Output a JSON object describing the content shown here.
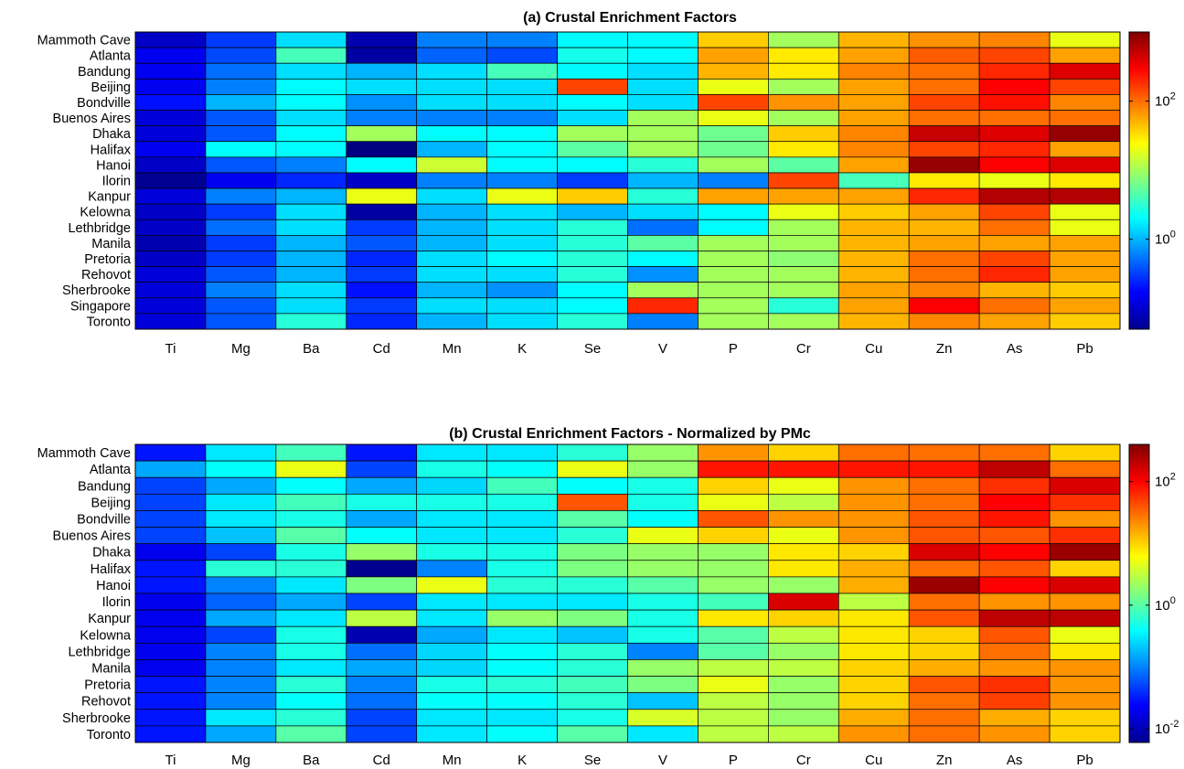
{
  "chart_data": [
    {
      "type": "heatmap",
      "title": "(a) Crustal Enrichment Factors",
      "x": [
        "Ti",
        "Mg",
        "Ba",
        "Cd",
        "Mn",
        "K",
        "Se",
        "V",
        "P",
        "Cr",
        "Cu",
        "Zn",
        "As",
        "Pb"
      ],
      "y": [
        "Mammoth Cave",
        "Atlanta",
        "Bandung",
        "Beijing",
        "Bondville",
        "Buenos Aires",
        "Dhaka",
        "Halifax",
        "Hanoi",
        "Ilorin",
        "Kanpur",
        "Kelowna",
        "Lethbridge",
        "Manila",
        "Pretoria",
        "Rehovot",
        "Sherbrooke",
        "Singapore",
        "Toronto"
      ],
      "scale": "log",
      "clim": [
        0.05,
        1000
      ],
      "colorbar_ticks": [
        {
          "base": "10",
          "exp": "0",
          "value": 1
        },
        {
          "base": "10",
          "exp": "2",
          "value": 100
        }
      ],
      "values": [
        [
          0.1,
          0.3,
          1.5,
          0.08,
          0.6,
          0.6,
          2.0,
          2.0,
          40,
          10,
          50,
          70,
          80,
          20
        ],
        [
          0.15,
          0.35,
          4.0,
          0.07,
          0.45,
          0.35,
          2.5,
          2.0,
          60,
          30,
          60,
          120,
          150,
          60
        ],
        [
          0.15,
          0.5,
          1.5,
          1.0,
          1.5,
          4.0,
          2.0,
          1.5,
          50,
          30,
          80,
          100,
          200,
          400
        ],
        [
          0.15,
          0.6,
          2.0,
          1.5,
          1.5,
          1.5,
          150,
          1.5,
          20,
          10,
          60,
          100,
          300,
          150
        ],
        [
          0.2,
          1.0,
          2.0,
          0.7,
          1.5,
          1.5,
          2.0,
          1.5,
          150,
          70,
          60,
          150,
          250,
          80
        ],
        [
          0.12,
          0.4,
          1.5,
          0.6,
          0.6,
          0.6,
          1.5,
          10,
          20,
          10,
          60,
          100,
          100,
          100
        ],
        [
          0.12,
          0.4,
          2.0,
          10,
          2.0,
          2.0,
          10,
          10,
          6,
          40,
          80,
          500,
          400,
          800
        ],
        [
          0.15,
          2.0,
          2.0,
          0.05,
          1.0,
          2.0,
          5,
          10,
          6,
          30,
          80,
          150,
          200,
          60
        ],
        [
          0.1,
          0.4,
          0.6,
          2.0,
          15,
          2.0,
          2.0,
          3,
          10,
          5,
          60,
          800,
          300,
          400
        ],
        [
          0.06,
          0.15,
          0.25,
          0.1,
          0.6,
          0.6,
          0.3,
          1.0,
          0.6,
          150,
          4,
          30,
          20,
          30
        ],
        [
          0.12,
          0.6,
          1.0,
          20,
          1.5,
          20,
          40,
          3,
          60,
          60,
          60,
          200,
          600,
          600
        ],
        [
          0.1,
          0.3,
          1.5,
          0.07,
          1.0,
          1.5,
          1.0,
          1.5,
          2,
          20,
          40,
          60,
          150,
          20
        ],
        [
          0.1,
          0.5,
          1.5,
          0.3,
          1.0,
          1.5,
          3.0,
          0.5,
          2,
          10,
          50,
          50,
          100,
          20
        ],
        [
          0.08,
          0.3,
          1.0,
          0.4,
          1.0,
          1.5,
          3.0,
          5,
          10,
          10,
          50,
          60,
          60,
          60
        ],
        [
          0.1,
          0.3,
          1.0,
          0.25,
          1.5,
          2.0,
          3.0,
          2.0,
          10,
          8,
          50,
          100,
          150,
          60
        ],
        [
          0.12,
          0.4,
          1.0,
          0.3,
          1.5,
          1.5,
          3.0,
          0.7,
          10,
          10,
          50,
          100,
          200,
          60
        ],
        [
          0.12,
          0.6,
          1.5,
          0.2,
          1.0,
          0.7,
          2.0,
          10,
          10,
          10,
          60,
          80,
          50,
          40
        ],
        [
          0.12,
          0.4,
          1.5,
          0.3,
          1.5,
          1.5,
          2.0,
          200,
          10,
          3,
          60,
          300,
          100,
          60
        ],
        [
          0.12,
          0.4,
          3.0,
          0.25,
          1.0,
          1.5,
          3.0,
          0.6,
          10,
          10,
          50,
          80,
          60,
          40
        ]
      ]
    },
    {
      "type": "heatmap",
      "title": "(b) Crustal Enrichment Factors - Normalized by PMc",
      "x": [
        "Ti",
        "Mg",
        "Ba",
        "Cd",
        "Mn",
        "K",
        "Se",
        "V",
        "P",
        "Cr",
        "Cu",
        "Zn",
        "As",
        "Pb"
      ],
      "y": [
        "Mammoth Cave",
        "Atlanta",
        "Bandung",
        "Beijing",
        "Bondville",
        "Buenos Aires",
        "Dhaka",
        "Halifax",
        "Hanoi",
        "Ilorin",
        "Kanpur",
        "Kelowna",
        "Lethbridge",
        "Manila",
        "Pretoria",
        "Rehovot",
        "Sherbrooke",
        "Toronto"
      ],
      "scale": "log",
      "clim": [
        0.006,
        400
      ],
      "colorbar_ticks": [
        {
          "base": "10",
          "exp": "-2",
          "value": 0.01
        },
        {
          "base": "10",
          "exp": "0",
          "value": 1
        },
        {
          "base": "10",
          "exp": "2",
          "value": 100
        }
      ],
      "values": [
        [
          0.03,
          0.3,
          0.8,
          0.03,
          0.3,
          0.3,
          0.6,
          2.0,
          20,
          10,
          30,
          30,
          30,
          10
        ],
        [
          0.15,
          0.4,
          5.0,
          0.05,
          0.5,
          0.4,
          5.0,
          2.0,
          80,
          80,
          80,
          80,
          200,
          30
        ],
        [
          0.05,
          0.15,
          0.4,
          0.15,
          0.25,
          0.8,
          0.4,
          0.5,
          10,
          5,
          20,
          30,
          60,
          150
        ],
        [
          0.05,
          0.3,
          0.8,
          0.5,
          0.5,
          0.5,
          40,
          0.5,
          5,
          3,
          20,
          30,
          100,
          60
        ],
        [
          0.05,
          0.3,
          0.5,
          0.15,
          0.3,
          0.3,
          1.0,
          0.4,
          40,
          20,
          20,
          40,
          80,
          20
        ],
        [
          0.05,
          0.2,
          1.0,
          0.4,
          0.3,
          0.3,
          0.6,
          5.0,
          10,
          5,
          20,
          40,
          40,
          60
        ],
        [
          0.02,
          0.05,
          0.5,
          2.0,
          0.5,
          0.5,
          1.5,
          2.0,
          2,
          8,
          10,
          150,
          100,
          300
        ],
        [
          0.03,
          0.6,
          0.6,
          0.007,
          0.1,
          0.5,
          1.5,
          2.0,
          2,
          8,
          15,
          30,
          40,
          10
        ],
        [
          0.03,
          0.1,
          0.3,
          1.5,
          5.0,
          0.6,
          0.6,
          1.0,
          2,
          2,
          15,
          300,
          100,
          150
        ],
        [
          0.02,
          0.07,
          0.15,
          0.05,
          0.3,
          0.3,
          0.3,
          0.5,
          0.8,
          150,
          3,
          30,
          20,
          20
        ],
        [
          0.02,
          0.15,
          0.3,
          3.0,
          0.3,
          2.0,
          1.5,
          0.5,
          8,
          10,
          8,
          40,
          200,
          200
        ],
        [
          0.02,
          0.05,
          0.5,
          0.01,
          0.15,
          0.3,
          0.2,
          0.5,
          1,
          3,
          8,
          10,
          40,
          5
        ],
        [
          0.02,
          0.1,
          0.5,
          0.08,
          0.25,
          0.4,
          0.6,
          0.1,
          1,
          2,
          8,
          10,
          30,
          8
        ],
        [
          0.02,
          0.1,
          0.3,
          0.15,
          0.25,
          0.4,
          0.6,
          2.0,
          3,
          3,
          10,
          15,
          20,
          20
        ],
        [
          0.03,
          0.1,
          0.6,
          0.1,
          0.5,
          0.6,
          0.8,
          1.5,
          5,
          2,
          10,
          40,
          60,
          20
        ],
        [
          0.03,
          0.1,
          0.4,
          0.08,
          0.4,
          0.4,
          0.6,
          0.2,
          3,
          2,
          10,
          30,
          50,
          20
        ],
        [
          0.03,
          0.3,
          0.6,
          0.05,
          0.3,
          0.3,
          0.5,
          4.0,
          3,
          2,
          15,
          30,
          15,
          10
        ],
        [
          0.03,
          0.15,
          1.0,
          0.05,
          0.3,
          0.4,
          1.0,
          0.3,
          3,
          3,
          20,
          30,
          20,
          10
        ]
      ]
    }
  ]
}
